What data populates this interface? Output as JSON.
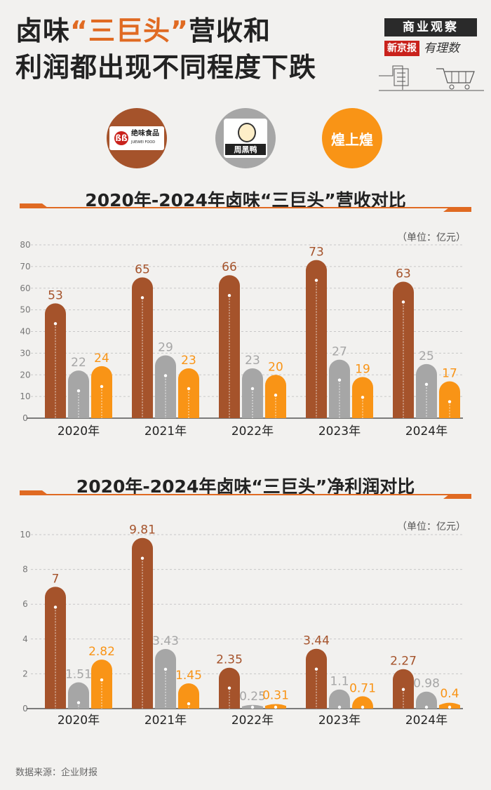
{
  "header": {
    "title_part1": "卤味",
    "title_accent": "“三巨头”",
    "title_part2": "营收和",
    "title_line2": "利润都出现不同程度下跌",
    "badge_top": "商业观察",
    "badge_red": "新京报",
    "badge_script": "有理数"
  },
  "logos": [
    {
      "name": "绝味食品",
      "sub": "JUEWEI FOOD"
    },
    {
      "name": "周黑鸭"
    },
    {
      "name": "煌上煌"
    }
  ],
  "colors": {
    "juewei": "#a5532b",
    "zhouheiya": "#a6a6a6",
    "huangshanghuang": "#f99416",
    "accent": "#e06a22"
  },
  "source": "数据来源：企业财报",
  "chart_data": [
    {
      "type": "bar",
      "title": "2020年-2024年卤味“三巨头”营收对比",
      "unit": "（单位：亿元）",
      "categories": [
        "2020年",
        "2021年",
        "2022年",
        "2023年",
        "2024年"
      ],
      "series": [
        {
          "name": "绝味食品",
          "values": [
            53,
            65,
            66,
            73,
            63
          ],
          "labels": [
            "53",
            "65",
            "66",
            "73",
            "63"
          ]
        },
        {
          "name": "周黑鸭",
          "values": [
            22,
            29,
            23,
            27,
            25
          ],
          "labels": [
            "22",
            "29",
            "23",
            "27",
            "25"
          ]
        },
        {
          "name": "煌上煌",
          "values": [
            24,
            23,
            20,
            19,
            17
          ],
          "labels": [
            "24",
            "23",
            "20",
            "19",
            "17"
          ]
        }
      ],
      "yticks": [
        "0",
        "10",
        "20",
        "30",
        "40",
        "50",
        "60",
        "70",
        "80"
      ],
      "ylim": [
        0,
        80
      ]
    },
    {
      "type": "bar",
      "title": "2020年-2024年卤味“三巨头”净利润对比",
      "unit": "（单位：亿元）",
      "categories": [
        "2020年",
        "2021年",
        "2022年",
        "2023年",
        "2024年"
      ],
      "series": [
        {
          "name": "绝味食品",
          "values": [
            7,
            9.81,
            2.35,
            3.44,
            2.27
          ],
          "labels": [
            "7",
            "9.81",
            "2.35",
            "3.44",
            "2.27"
          ]
        },
        {
          "name": "周黑鸭",
          "values": [
            1.51,
            3.43,
            0.25,
            1.1,
            0.98
          ],
          "labels": [
            "1.51",
            "3.43",
            "0.25",
            "1.1",
            "0.98"
          ]
        },
        {
          "name": "煌上煌",
          "values": [
            2.82,
            1.45,
            0.31,
            0.71,
            0.4
          ],
          "labels": [
            "2.82",
            "1.45",
            "0.31",
            "0.71",
            "0.4"
          ]
        }
      ],
      "yticks": [
        "0",
        "2",
        "4",
        "6",
        "8",
        "10"
      ],
      "ylim": [
        0,
        10
      ]
    }
  ]
}
